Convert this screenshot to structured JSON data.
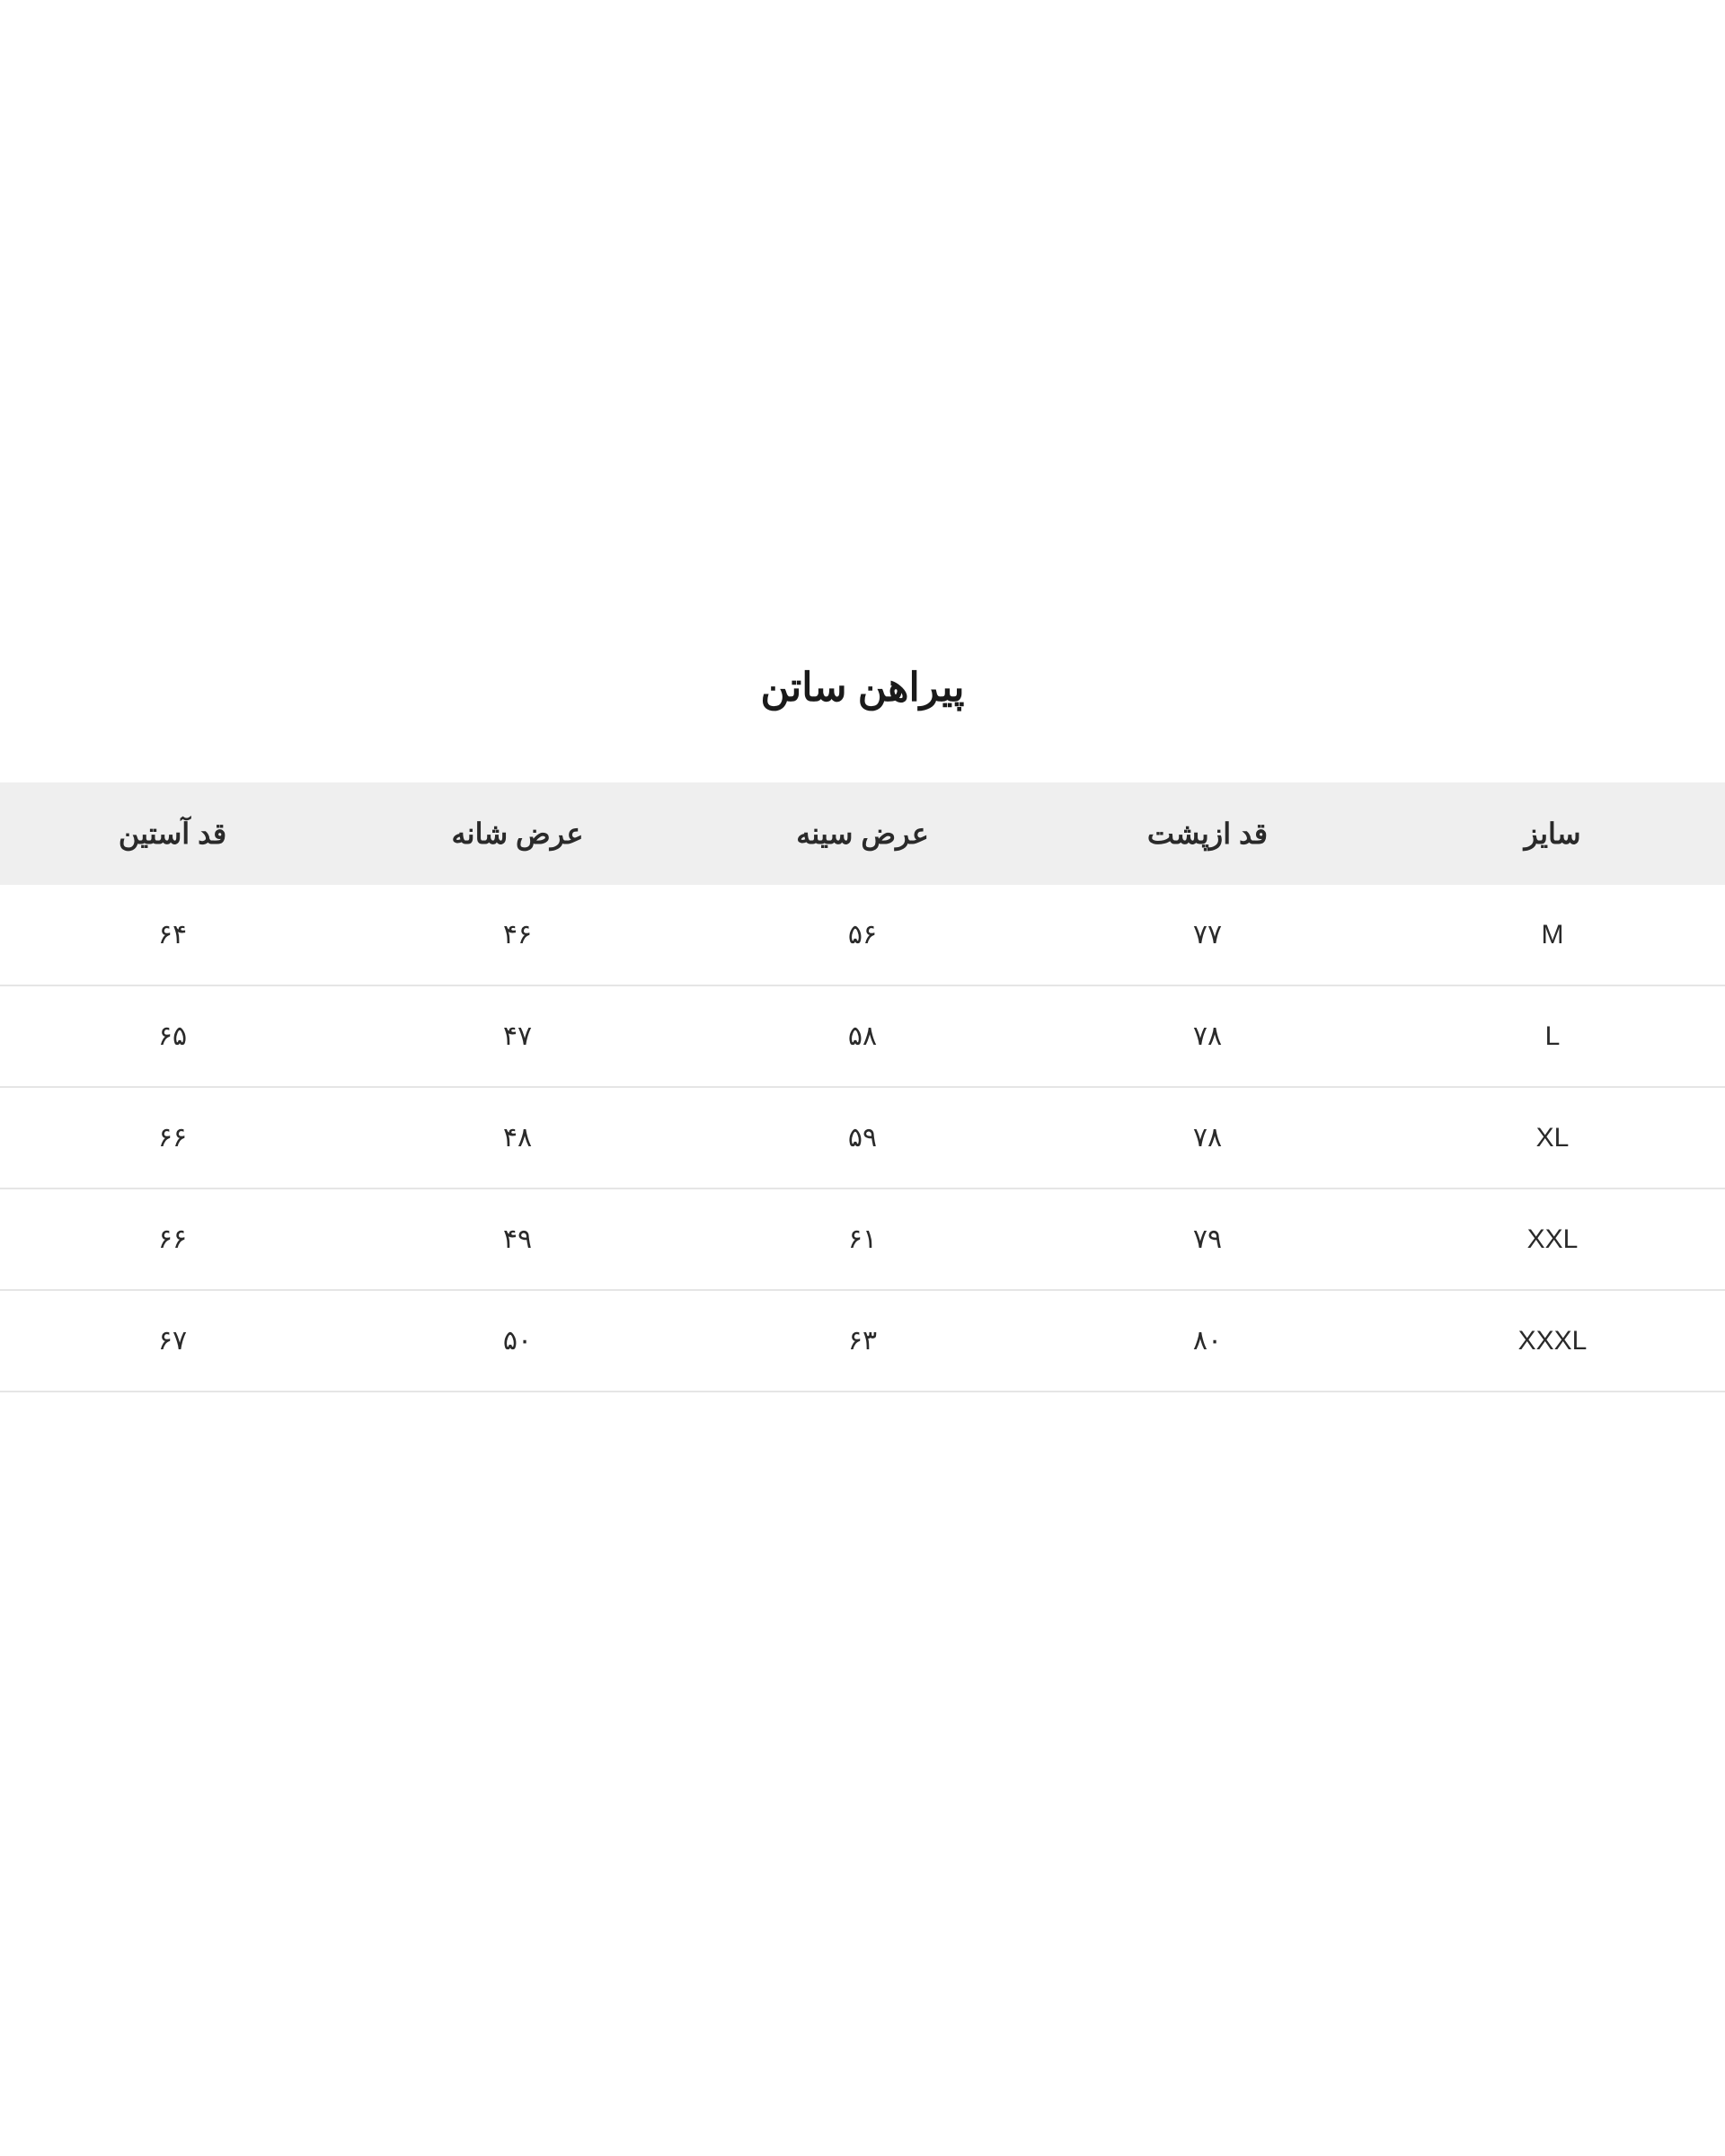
{
  "title": "پیراهن ساتن",
  "table": {
    "columns": [
      "سایز",
      "قد ازپشت",
      "عرض سینه",
      "عرض شانه",
      "قد آستین"
    ],
    "rows": [
      [
        "M",
        "۷۷",
        "۵۶",
        "۴۶",
        "۶۴"
      ],
      [
        "L",
        "۷۸",
        "۵۸",
        "۴۷",
        "۶۵"
      ],
      [
        "XL",
        "۷۸",
        "۵۹",
        "۴۸",
        "۶۶"
      ],
      [
        "XXL",
        "۷۹",
        "۶۱",
        "۴۹",
        "۶۶"
      ],
      [
        "XXXL",
        "۸۰",
        "۶۳",
        "۵۰",
        "۶۷"
      ]
    ],
    "header_bg": "#efefef",
    "border_color": "#e5e5e5",
    "text_color": "#2a2a2a",
    "background_color": "#ffffff",
    "title_fontsize": 44,
    "header_fontsize": 32,
    "cell_fontsize": 30
  }
}
